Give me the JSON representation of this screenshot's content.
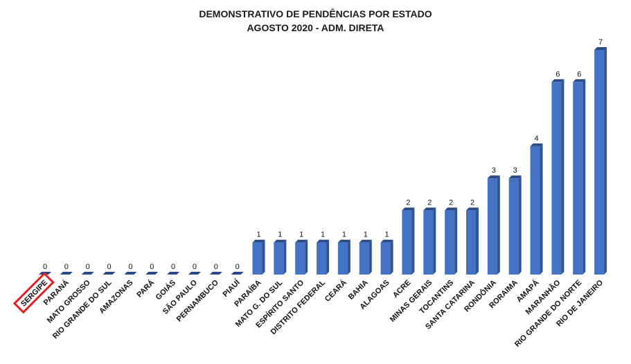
{
  "chart_data": {
    "type": "bar",
    "title": "DEMONSTRATIVO DE PENDÊNCIAS POR ESTADO",
    "subtitle": "AGOSTO 2020 - ADM. DIRETA",
    "categories": [
      "SERGIPE",
      "PARANÁ",
      "MATO GROSSO",
      "RIO GRANDE DO SUL",
      "AMAZONAS",
      "PARÁ",
      "GOIÁS",
      "SÃO PAULO",
      "PERNAMBUCO",
      "PIAUÍ",
      "PARAÍBA",
      "MATO G. DO SUL",
      "ESPÍRITO  SANTO",
      "DISTRITO  FEDERAL",
      "CEARÁ",
      "BAHIA",
      "ALAGOAS",
      "ACRE",
      "MINAS GERAIS",
      "TOCANTINS",
      "SANTA CATARINA",
      "RONDÔNIA",
      "RORAIMA",
      "AMAPÁ",
      "MARANHÃO",
      "RIO GRANDE DO NORTE",
      "RIO DE JANEIRO"
    ],
    "values": [
      0,
      0,
      0,
      0,
      0,
      0,
      0,
      0,
      0,
      0,
      1,
      1,
      1,
      1,
      1,
      1,
      1,
      2,
      2,
      2,
      2,
      3,
      3,
      4,
      6,
      6,
      7
    ],
    "ylim": [
      0,
      7
    ],
    "grid": false,
    "legend": "none",
    "highlighted_category": "SERGIPE",
    "bar_color": "#4472C4",
    "bar_side_color": "#2F5597",
    "bar_top_color": "#2A4A86",
    "highlight_color": "#E02020"
  }
}
